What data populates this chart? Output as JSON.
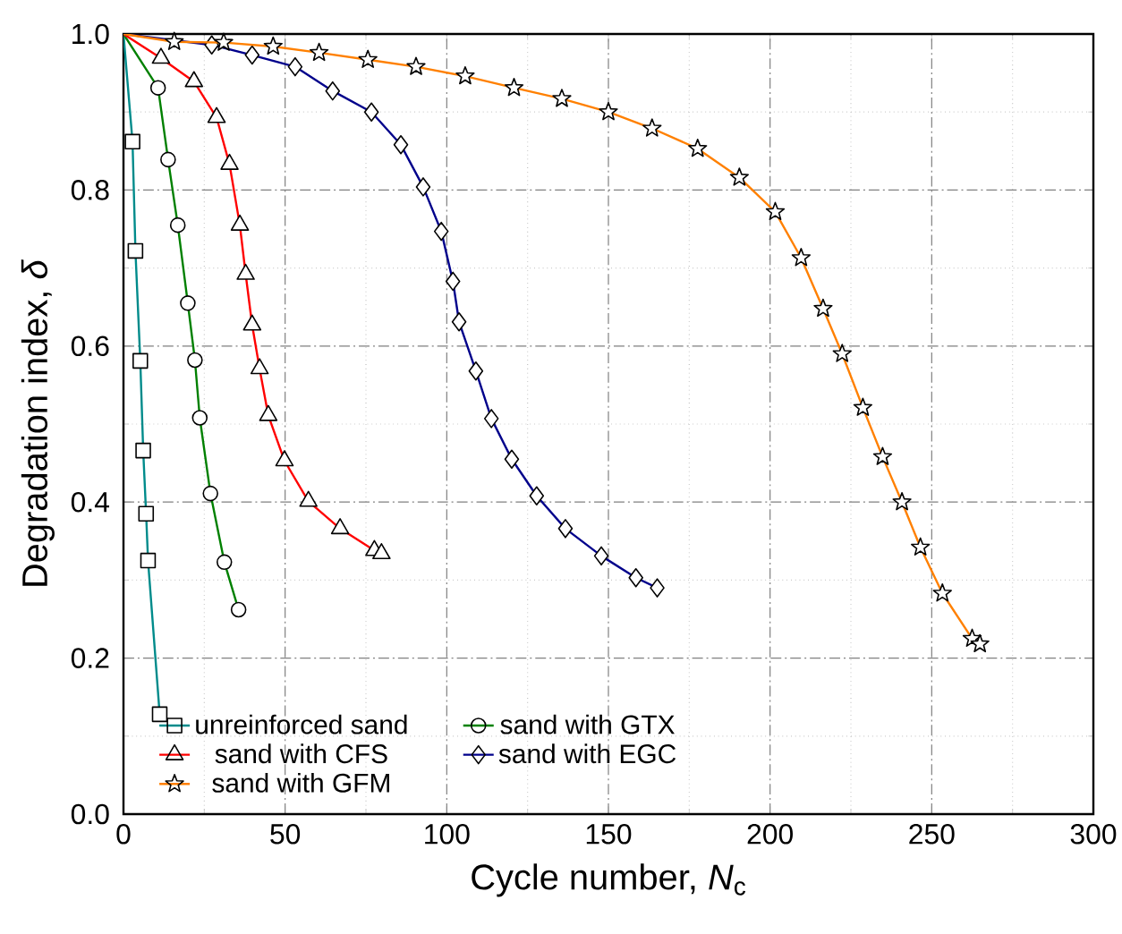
{
  "chart_data": {
    "type": "line",
    "xlabel": "Cycle number, *N*$_{c}$",
    "ylabel": "Degradation index, *δ*",
    "xlim": [
      0,
      300
    ],
    "ylim": [
      0,
      1
    ],
    "xticks": [
      0,
      50,
      100,
      150,
      200,
      250,
      300
    ],
    "yticks": [
      {
        "value": 0,
        "label": "0.0"
      },
      {
        "value": 0.2,
        "label": "0.2"
      },
      {
        "value": 0.4,
        "label": "0.4"
      },
      {
        "value": 0.6,
        "label": "0.6"
      },
      {
        "value": 0.8,
        "label": "0.8"
      },
      {
        "value": 1,
        "label": "1.0"
      }
    ],
    "grid": true,
    "legend": "bottom",
    "line_style": "solid",
    "series": [
      {
        "name": "unreinforced sand",
        "color": "#008b8b",
        "marker": "square",
        "x": [
          0,
          2.8,
          3.7,
          5.2,
          6.1,
          7.0,
          7.6,
          11.2
        ],
        "values": [
          1.0,
          0.862,
          0.722,
          0.581,
          0.466,
          0.385,
          0.325,
          0.128
        ]
      },
      {
        "name": "sand with GTX",
        "color": "#008000",
        "marker": "circle",
        "x": [
          0,
          10.7,
          13.8,
          16.8,
          19.9,
          22.1,
          23.6,
          26.9,
          31.2,
          35.6
        ],
        "values": [
          1.0,
          0.931,
          0.839,
          0.755,
          0.655,
          0.582,
          0.508,
          0.411,
          0.323,
          0.262
        ]
      },
      {
        "name": "sand with CFS",
        "color": "#ff0000",
        "marker": "triangle",
        "x": [
          0,
          11.6,
          21.8,
          28.8,
          32.8,
          36.0,
          37.8,
          39.8,
          42.1,
          44.8,
          49.8,
          57.2,
          67.0,
          77.6,
          79.8
        ],
        "values": [
          1.0,
          0.969,
          0.939,
          0.893,
          0.833,
          0.755,
          0.692,
          0.627,
          0.571,
          0.511,
          0.453,
          0.401,
          0.366,
          0.338,
          0.334
        ]
      },
      {
        "name": "sand with EGC",
        "color": "#00008b",
        "marker": "diamond",
        "x": [
          0,
          27.3,
          39.8,
          53.1,
          64.7,
          76.7,
          85.8,
          92.7,
          98.3,
          101.9,
          103.8,
          109.0,
          113.8,
          120.1,
          127.8,
          136.7,
          147.8,
          158.5,
          165.1
        ],
        "values": [
          1.0,
          0.986,
          0.973,
          0.958,
          0.927,
          0.9,
          0.858,
          0.804,
          0.747,
          0.683,
          0.631,
          0.568,
          0.507,
          0.455,
          0.408,
          0.366,
          0.331,
          0.303,
          0.29
        ]
      },
      {
        "name": "sand with GFM",
        "color": "#ff8000",
        "marker": "star",
        "x": [
          0,
          15.7,
          31.0,
          46.3,
          60.5,
          75.6,
          90.5,
          105.7,
          120.8,
          135.6,
          150.0,
          163.5,
          177.6,
          190.5,
          201.6,
          209.6,
          216.4,
          222.3,
          228.7,
          234.8,
          240.8,
          246.5,
          253.3,
          262.5,
          264.9
        ],
        "values": [
          1.0,
          0.99,
          0.989,
          0.984,
          0.976,
          0.967,
          0.958,
          0.946,
          0.931,
          0.917,
          0.9,
          0.879,
          0.853,
          0.816,
          0.772,
          0.713,
          0.648,
          0.59,
          0.521,
          0.458,
          0.4,
          0.342,
          0.283,
          0.225,
          0.218
        ]
      }
    ]
  }
}
